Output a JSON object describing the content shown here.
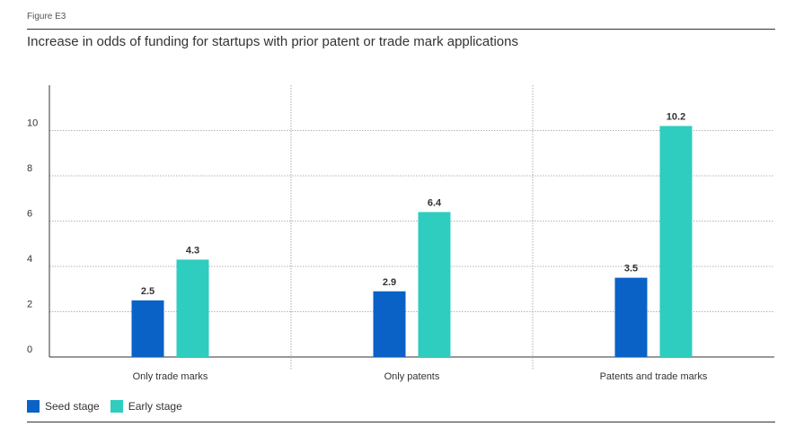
{
  "figure_label": "Figure E3",
  "chart_data": {
    "type": "bar",
    "title": "Increase in odds of funding for startups with prior patent or trade mark applications",
    "categories": [
      "Only trade marks",
      "Only patents",
      "Patents and trade marks"
    ],
    "series": [
      {
        "name": "Seed stage",
        "values": [
          2.5,
          2.9,
          3.5
        ],
        "color": "#0a62c7"
      },
      {
        "name": "Early stage",
        "values": [
          4.3,
          6.4,
          10.2
        ],
        "color": "#2ecdbf"
      }
    ],
    "data_labels": [
      [
        "2.5",
        "2.9",
        "3.5"
      ],
      [
        "4.3",
        "6.4",
        "10.2"
      ]
    ],
    "yticks": [
      "0",
      "2",
      "4",
      "6",
      "8",
      "10"
    ],
    "ytick_values": [
      0,
      2,
      4,
      6,
      8,
      10
    ],
    "ylim": [
      0,
      12
    ],
    "xlabel": "",
    "ylabel": "",
    "grid": true,
    "legend": "bottom-left"
  }
}
